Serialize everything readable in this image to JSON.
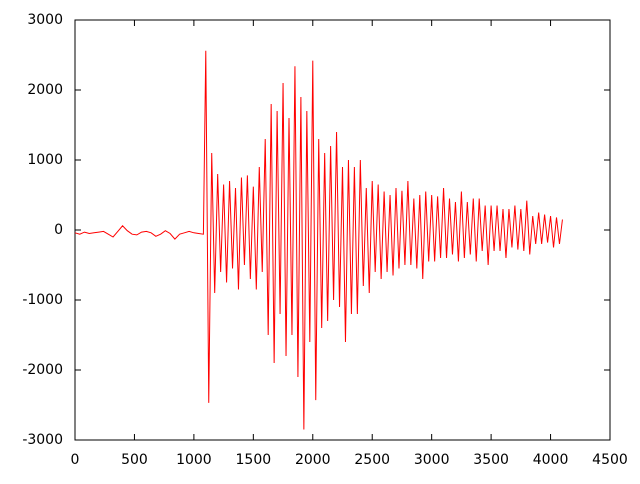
{
  "chart_data": {
    "type": "line",
    "color": "#ff0000",
    "xlim": [
      0,
      4500
    ],
    "xticks": [
      0,
      500,
      1000,
      1500,
      2000,
      2500,
      3000,
      3500,
      4000,
      4500
    ],
    "ylim": [
      -3000,
      3000
    ],
    "yticks": [
      -3000,
      -2000,
      -1000,
      0,
      1000,
      2000,
      3000
    ],
    "x": [
      0,
      40,
      80,
      120,
      160,
      200,
      240,
      280,
      320,
      360,
      400,
      440,
      480,
      520,
      560,
      600,
      640,
      680,
      720,
      760,
      800,
      840,
      880,
      920,
      960,
      1000,
      1040,
      1080,
      1100,
      1125,
      1150,
      1175,
      1200,
      1225,
      1250,
      1275,
      1300,
      1325,
      1350,
      1375,
      1400,
      1425,
      1450,
      1475,
      1500,
      1525,
      1550,
      1575,
      1600,
      1625,
      1650,
      1675,
      1700,
      1725,
      1750,
      1775,
      1800,
      1825,
      1850,
      1875,
      1900,
      1925,
      1950,
      1975,
      2000,
      2025,
      2050,
      2075,
      2100,
      2125,
      2150,
      2175,
      2200,
      2225,
      2250,
      2275,
      2300,
      2325,
      2350,
      2375,
      2400,
      2425,
      2450,
      2475,
      2500,
      2525,
      2550,
      2575,
      2600,
      2625,
      2650,
      2675,
      2700,
      2725,
      2750,
      2775,
      2800,
      2825,
      2850,
      2875,
      2900,
      2925,
      2950,
      2975,
      3000,
      3025,
      3050,
      3075,
      3100,
      3125,
      3150,
      3175,
      3200,
      3225,
      3250,
      3275,
      3300,
      3325,
      3350,
      3375,
      3400,
      3425,
      3450,
      3475,
      3500,
      3525,
      3550,
      3575,
      3600,
      3625,
      3650,
      3675,
      3700,
      3725,
      3750,
      3775,
      3800,
      3825,
      3850,
      3875,
      3900,
      3925,
      3950,
      3975,
      4000,
      4025,
      4050,
      4075,
      4100
    ],
    "values": [
      -40,
      -60,
      -30,
      -50,
      -40,
      -30,
      -20,
      -60,
      -100,
      -20,
      60,
      -10,
      -60,
      -70,
      -30,
      -20,
      -40,
      -90,
      -60,
      -10,
      -50,
      -130,
      -60,
      -40,
      -20,
      -40,
      -50,
      -60,
      2560,
      -2470,
      1100,
      -900,
      800,
      -600,
      650,
      -750,
      700,
      -550,
      600,
      -850,
      750,
      -500,
      780,
      -700,
      620,
      -850,
      900,
      -600,
      1300,
      -1500,
      1800,
      -1900,
      1700,
      -1200,
      2100,
      -1800,
      1600,
      -1500,
      2340,
      -2100,
      1900,
      -2850,
      1700,
      -1600,
      2420,
      -2430,
      1300,
      -1400,
      1100,
      -1300,
      1200,
      -1000,
      1400,
      -1100,
      900,
      -1600,
      1000,
      -1200,
      900,
      -1200,
      1000,
      -800,
      600,
      -900,
      700,
      -600,
      650,
      -700,
      550,
      -600,
      500,
      -650,
      600,
      -550,
      560,
      -500,
      700,
      -500,
      450,
      -550,
      500,
      -700,
      550,
      -450,
      500,
      -450,
      480,
      -400,
      600,
      -400,
      450,
      -350,
      400,
      -450,
      550,
      -400,
      400,
      -350,
      450,
      -450,
      450,
      -300,
      350,
      -500,
      350,
      -300,
      350,
      -300,
      300,
      -400,
      300,
      -250,
      350,
      -280,
      300,
      -300,
      420,
      -350,
      200,
      -200,
      250,
      -200,
      220,
      -180,
      200,
      -250,
      180,
      -200,
      150
    ]
  }
}
